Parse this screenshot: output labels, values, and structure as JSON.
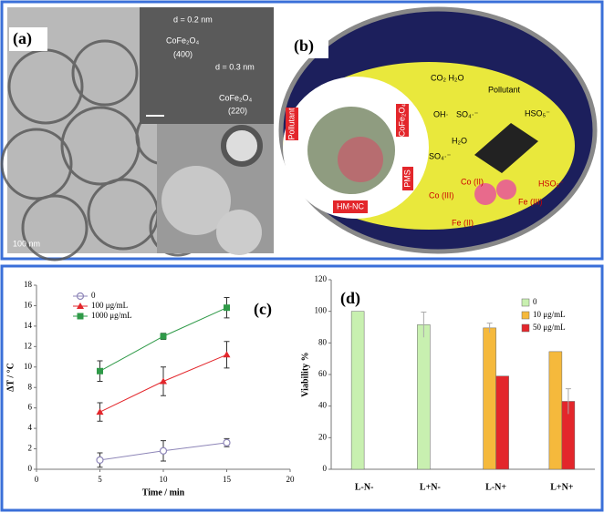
{
  "panel_a": {
    "label": "(a)",
    "d1": "d = 0.2 nm",
    "phase1": "CoFe₂O₄",
    "plane1": "(400)",
    "d2": "d = 0.3 nm",
    "phase2": "CoFe₂O₄",
    "plane2": "(220)",
    "scale": "100 nm"
  },
  "panel_b": {
    "label": "(b)",
    "products": "CO₂ H₂O",
    "pollutant_out": "Pollutant",
    "sulfate": "SO₄·⁻",
    "hydroxyl": "OH·",
    "hso5_top": "HSO₅⁻",
    "water": "H₂O",
    "sulfate2": "SO₄·⁻",
    "co2": "Co (II)",
    "co3": "Co (III)",
    "fe3": "Fe (III)",
    "hso5_bottom": "HSO₅⁻",
    "fe2": "Fe (II)",
    "pollutant_in": "Pollutant",
    "catalyst": "CoFe₂O₄",
    "pms": "PMS",
    "hmnc": "HM-NC"
  },
  "chart_data": [
    {
      "type": "line",
      "label": "(c)",
      "x_label": "Time / min",
      "y_label": "ΔT / °C",
      "x": [
        5,
        10,
        15
      ],
      "xlim": [
        0,
        20
      ],
      "xticks": [
        0,
        5,
        10,
        15,
        20
      ],
      "ylim": [
        0,
        18
      ],
      "yticks": [
        0,
        2,
        4,
        6,
        8,
        10,
        12,
        14,
        16,
        18
      ],
      "series": [
        {
          "name": "0",
          "color": "#8e86b8",
          "marker": "open-circle",
          "values": [
            0.9,
            1.8,
            2.6
          ],
          "errors": [
            0.7,
            1.0,
            0.4
          ]
        },
        {
          "name": "100 μg/mL",
          "color": "#e3262b",
          "marker": "triangle",
          "values": [
            5.6,
            8.6,
            11.2
          ],
          "errors": [
            0.9,
            1.4,
            1.3
          ]
        },
        {
          "name": "1000 μg/mL",
          "color": "#2f9a48",
          "marker": "square",
          "values": [
            9.6,
            13.0,
            15.8
          ],
          "errors": [
            1.0,
            0.3,
            1.0
          ]
        }
      ]
    },
    {
      "type": "bar",
      "label": "(d)",
      "y_label": "Viability %",
      "categories": [
        "L-N-",
        "L+N-",
        "L-N+",
        "L+N+"
      ],
      "ylim": [
        0,
        120
      ],
      "yticks": [
        0,
        20,
        40,
        60,
        80,
        100,
        120
      ],
      "series": [
        {
          "name": "0",
          "color": "#c8f0b0",
          "values": [
            100,
            91.5,
            null,
            null
          ],
          "errors": [
            null,
            8,
            null,
            null
          ]
        },
        {
          "name": "10 μg/mL",
          "color": "#f5b93c",
          "values": [
            null,
            null,
            89.5,
            74.5
          ],
          "errors": [
            null,
            null,
            3,
            null
          ]
        },
        {
          "name": "50 μg/mL",
          "color": "#e3262b",
          "values": [
            null,
            null,
            59,
            43
          ],
          "errors": [
            null,
            null,
            null,
            8
          ]
        }
      ]
    }
  ]
}
